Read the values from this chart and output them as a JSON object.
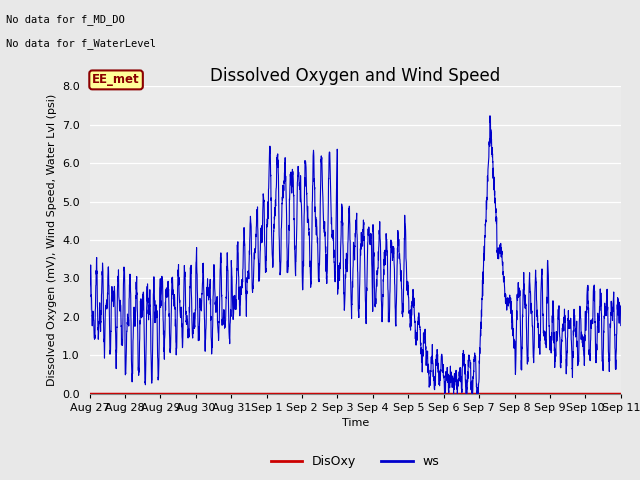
{
  "title": "Dissolved Oxygen and Wind Speed",
  "ylabel": "Dissolved Oxygen (mV), Wind Speed, Water Lvl (psi)",
  "xlabel": "Time",
  "ylim": [
    0.0,
    8.0
  ],
  "yticks": [
    0.0,
    1.0,
    2.0,
    3.0,
    4.0,
    5.0,
    6.0,
    7.0,
    8.0
  ],
  "annotation_lines": [
    "No data for f_MD_DO",
    "No data for f_WaterLevel"
  ],
  "legend_box_label": "EE_met",
  "legend_box_color": "#ffff99",
  "legend_box_edge": "#8b0000",
  "legend_box_text": "#8b0000",
  "ws_color": "#0000cc",
  "disoxy_color": "#cc0000",
  "bg_color": "#e8e8e8",
  "plot_bg_color": "#ebebeb",
  "ws_linewidth": 0.8,
  "disoxy_linewidth": 1.2,
  "title_fontsize": 12,
  "label_fontsize": 8,
  "tick_fontsize": 8,
  "num_points": 3000,
  "xtick_labels": [
    "Aug 27",
    "Aug 28",
    "Aug 29",
    "Aug 30",
    "Aug 31",
    "Sep 1",
    "Sep 2",
    "Sep 3",
    "Sep 4",
    "Sep 5",
    "Sep 6",
    "Sep 7",
    "Sep 8",
    "Sep 9",
    "Sep 10",
    "Sep 11"
  ],
  "xtick_positions": [
    0,
    1,
    2,
    3,
    4,
    5,
    6,
    7,
    8,
    9,
    10,
    11,
    12,
    13,
    14,
    15
  ]
}
